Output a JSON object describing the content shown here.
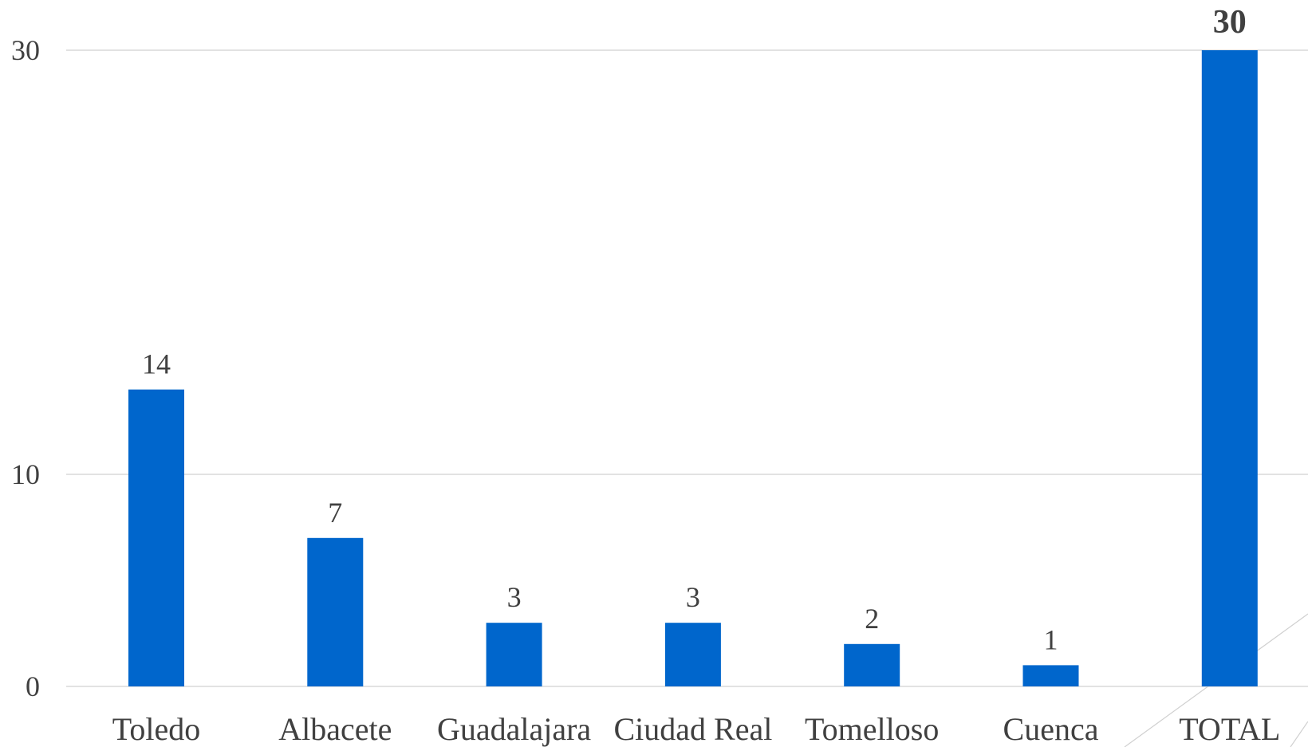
{
  "chart_data": {
    "type": "bar",
    "categories": [
      "Toledo",
      "Albacete",
      "Guadalajara",
      "Ciudad Real",
      "Tomelloso",
      "Cuenca",
      "TOTAL"
    ],
    "values": [
      14,
      7,
      3,
      3,
      2,
      1,
      30
    ],
    "data_labels": [
      "14",
      "7",
      "3",
      "3",
      "2",
      "1",
      "30"
    ],
    "highlight_index": 6,
    "ylim": [
      0,
      30
    ],
    "yticks": [
      0,
      10,
      30
    ],
    "ytick_labels": [
      "0",
      "10",
      "30"
    ],
    "grid": true,
    "legend": "none",
    "title": "",
    "xlabel": "",
    "ylabel": "",
    "colors": {
      "bar": "#0066CC",
      "highlight_label": "#0033CC",
      "text": "#404040",
      "grid": "#D9D9D9"
    }
  }
}
